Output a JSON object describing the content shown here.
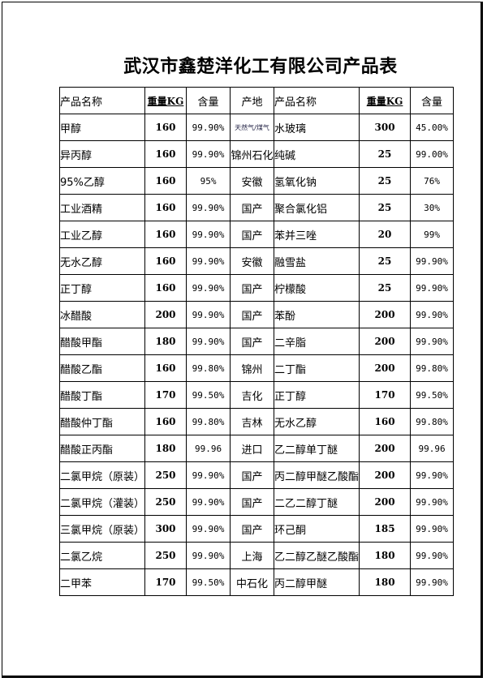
{
  "title": "武汉市鑫楚洋化工有限公司产品表",
  "headers": [
    "产品名称",
    "重量KG",
    "含量",
    "产地",
    "产品名称",
    "重量KG",
    "含量"
  ],
  "rows": [
    [
      "甲醇",
      "160",
      "99.90%",
      "天然气/煤气",
      "水玻璃",
      "300",
      "45.00%"
    ],
    [
      "异丙醇",
      "160",
      "99.90%",
      "锦州石化",
      "纯碱",
      "25",
      "99.00%"
    ],
    [
      "95%乙醇",
      "160",
      "95%",
      "安徽",
      "氢氧化钠",
      "25",
      "76%"
    ],
    [
      "工业酒精",
      "160",
      "99.90%",
      "国产",
      "聚合氯化铝",
      "25",
      "30%"
    ],
    [
      "工业乙醇",
      "160",
      "99.90%",
      "国产",
      "苯并三唑",
      "20",
      "99%"
    ],
    [
      "无水乙醇",
      "160",
      "99.90%",
      "安徽",
      "融雪盐",
      "25",
      "99.90%"
    ],
    [
      "正丁醇",
      "160",
      "99.90%",
      "国产",
      "柠檬酸",
      "25",
      "99.90%"
    ],
    [
      "冰醋酸",
      "200",
      "99.90%",
      "国产",
      "苯酚",
      "200",
      "99.90%"
    ],
    [
      "醋酸甲酯",
      "180",
      "99.90%",
      "国产",
      "二辛脂",
      "200",
      "99.90%"
    ],
    [
      "醋酸乙酯",
      "160",
      "99.80%",
      "锦州",
      "二丁酯",
      "200",
      "99.80%"
    ],
    [
      "醋酸丁酯",
      "170",
      "99.50%",
      "吉化",
      "正丁醇",
      "170",
      "99.50%"
    ],
    [
      "醋酸仲丁酯",
      "160",
      "99.80%",
      "吉林",
      "无水乙醇",
      "160",
      "99.80%"
    ],
    [
      "醋酸正丙酯",
      "180",
      "99.96",
      "进口",
      "乙二醇单丁醚",
      "200",
      "99.96"
    ],
    [
      "二氯甲烷（原装）",
      "250",
      "99.90%",
      "国产",
      "丙二醇甲醚乙酸酯",
      "200",
      "99.90%"
    ],
    [
      "二氯甲烷（灌装）",
      "250",
      "99.90%",
      "国产",
      "二乙二醇丁醚",
      "200",
      "99.90%"
    ],
    [
      "三氯甲烷（原装）",
      "300",
      "99.90%",
      "国产",
      "环己酮",
      "185",
      "99.90%"
    ],
    [
      "二氯乙烷",
      "250",
      "99.90%",
      "上海",
      "乙二醇乙醚乙酸酯",
      "180",
      "99.90%"
    ],
    [
      "二甲苯",
      "170",
      "99.50%",
      "中石化",
      " 丙二醇甲醚",
      "180",
      "99.90%"
    ]
  ]
}
